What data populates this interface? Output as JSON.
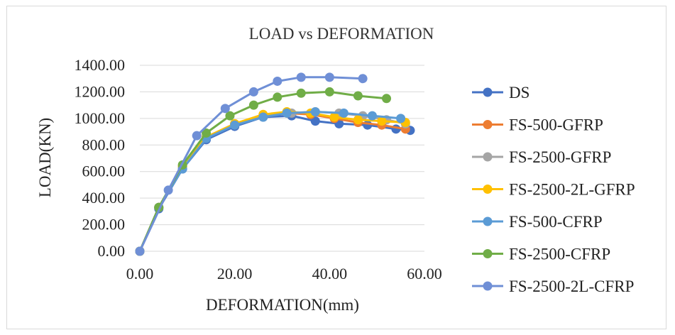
{
  "chart_data": {
    "type": "line",
    "title": "LOAD vs DEFORMATION",
    "xlabel": "DEFORMATION(mm)",
    "ylabel": "LOAD(KN)",
    "xlim": [
      0,
      60
    ],
    "ylim": [
      0,
      1400
    ],
    "x_ticks": [
      "0.00",
      "20.00",
      "40.00",
      "60.00"
    ],
    "y_ticks": [
      "0.00",
      "200.00",
      "400.00",
      "600.00",
      "800.00",
      "1000.00",
      "1200.00",
      "1400.00"
    ],
    "grid": "horizontal",
    "legend_position": "right",
    "series": [
      {
        "name": "DS",
        "color": "#4472C4",
        "x": [
          0,
          4,
          9,
          14,
          20,
          26,
          32,
          37,
          42,
          48,
          54,
          57
        ],
        "y": [
          0,
          320,
          620,
          840,
          940,
          1010,
          1020,
          980,
          960,
          950,
          920,
          910
        ]
      },
      {
        "name": "FS-500-GFRP",
        "color": "#ED7D31",
        "x": [
          0,
          4,
          9,
          14,
          20,
          26,
          31,
          36,
          41,
          46,
          51,
          56
        ],
        "y": [
          0,
          330,
          640,
          860,
          960,
          1020,
          1040,
          1030,
          1000,
          970,
          950,
          920
        ]
      },
      {
        "name": "FS-2500-GFRP",
        "color": "#A5A5A5",
        "x": [
          0,
          4,
          9,
          14,
          20,
          26,
          32,
          37,
          42,
          47,
          52,
          56
        ],
        "y": [
          0,
          330,
          630,
          860,
          960,
          1020,
          1040,
          1050,
          1040,
          1020,
          990,
          960
        ]
      },
      {
        "name": "FS-2500-2L-GFRP",
        "color": "#FFC000",
        "x": [
          0,
          4,
          9,
          14,
          20,
          26,
          31,
          36,
          41,
          46,
          51,
          56
        ],
        "y": [
          0,
          330,
          640,
          860,
          960,
          1030,
          1050,
          1040,
          1010,
          990,
          980,
          970
        ]
      },
      {
        "name": "FS-500-CFRP",
        "color": "#5B9BD5",
        "x": [
          0,
          4,
          9,
          14,
          20,
          26,
          31,
          37,
          43,
          49,
          55
        ],
        "y": [
          0,
          330,
          620,
          850,
          950,
          1010,
          1040,
          1050,
          1040,
          1020,
          1000
        ]
      },
      {
        "name": "FS-2500-CFRP",
        "color": "#70AD47",
        "x": [
          0,
          4,
          9,
          14,
          19,
          24,
          29,
          34,
          40,
          46,
          52
        ],
        "y": [
          0,
          330,
          650,
          890,
          1020,
          1100,
          1160,
          1190,
          1200,
          1170,
          1150
        ]
      },
      {
        "name": "FS-2500-2L-CFRP",
        "color": "#6F8FD6",
        "x": [
          0,
          6,
          12,
          18,
          24,
          29,
          34,
          40,
          47
        ],
        "y": [
          0,
          460,
          870,
          1075,
          1200,
          1280,
          1310,
          1310,
          1300
        ]
      }
    ]
  }
}
